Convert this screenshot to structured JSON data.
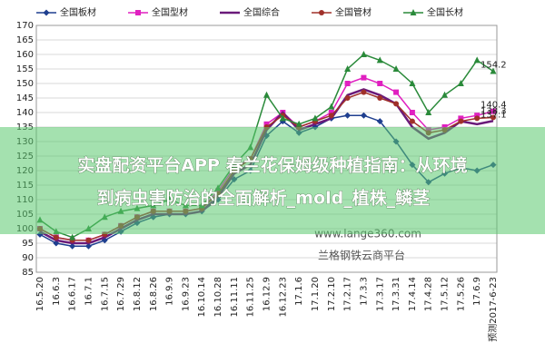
{
  "chart_data": {
    "type": "line",
    "categories": [
      "16.5.20",
      "16.6.3",
      "16.6.17",
      "16.7.1",
      "16.7.15",
      "16.7.29",
      "16.8.12",
      "16.8.26",
      "16.9.9",
      "16.9.23",
      "16.10.14",
      "16.10.28",
      "16.11.11",
      "16.11.25",
      "16.12.9",
      "16.12.23",
      "17.1.6",
      "17.1.20",
      "17.2.10",
      "17.2.17",
      "17.3.3",
      "17.3.17",
      "17.3.31",
      "17.4.14",
      "17.4.28",
      "17.5.12",
      "17.5.26",
      "17.6.9",
      "预测2017-6-23"
    ],
    "series": [
      {
        "name": "全国板材",
        "color": "#1f3f8f",
        "marker": "diamond",
        "values": [
          98,
          95,
          94,
          94,
          96,
          99,
          102,
          104,
          105,
          105,
          106,
          110,
          117,
          120,
          132,
          137,
          133,
          135,
          138,
          139,
          139,
          137,
          130,
          122,
          116,
          119,
          121,
          120,
          122
        ]
      },
      {
        "name": "全国型材",
        "color": "#e020c0",
        "marker": "square",
        "values": [
          100,
          97,
          96,
          96,
          98,
          101,
          104,
          106,
          106,
          106,
          107,
          113,
          121,
          124,
          136,
          140,
          135,
          137,
          140,
          150,
          152,
          150,
          147,
          140,
          134,
          135,
          138,
          139,
          140.4
        ]
      },
      {
        "name": "全国综合",
        "color": "#6a1a7a",
        "marker": "none",
        "values": [
          99,
          96,
          95,
          95,
          97,
          100,
          103,
          105,
          105,
          105,
          106,
          111,
          119,
          122,
          134,
          140,
          134,
          136,
          138,
          146,
          148,
          146,
          143,
          135,
          131,
          133,
          137,
          136,
          137.1
        ]
      },
      {
        "name": "全国管材",
        "color": "#a0302a",
        "marker": "circle",
        "values": [
          100,
          97,
          96,
          96,
          98,
          101,
          104,
          106,
          106,
          106,
          107,
          112,
          120,
          124,
          135,
          139,
          135,
          137,
          139,
          145,
          147,
          145,
          143,
          137,
          133,
          134,
          137,
          138,
          138.3
        ]
      },
      {
        "name": "全国长材",
        "color": "#2a8a3a",
        "marker": "triangle",
        "values": [
          103,
          99,
          97,
          100,
          104,
          106,
          107,
          108,
          110,
          108,
          108,
          114,
          122,
          128,
          146,
          138,
          136,
          138,
          142,
          155,
          160,
          158,
          155,
          150,
          140,
          146,
          150,
          158,
          154.2
        ]
      }
    ],
    "ylim": [
      85,
      170
    ],
    "yticks": [
      85,
      90,
      95,
      100,
      105,
      110,
      115,
      120,
      125,
      130,
      135,
      140,
      145,
      150,
      155,
      160,
      165,
      170
    ],
    "grid": true,
    "end_labels": [
      4,
      1,
      3,
      2
    ],
    "watermarks": [
      "www.lange360.com",
      "兰格钢铁云商平台"
    ],
    "banner": [
      "实盘配资平台APP 春兰花保姆级种植指南：从环境",
      "到病虫害防治的全面解析_mold_植株_鳞茎"
    ]
  }
}
